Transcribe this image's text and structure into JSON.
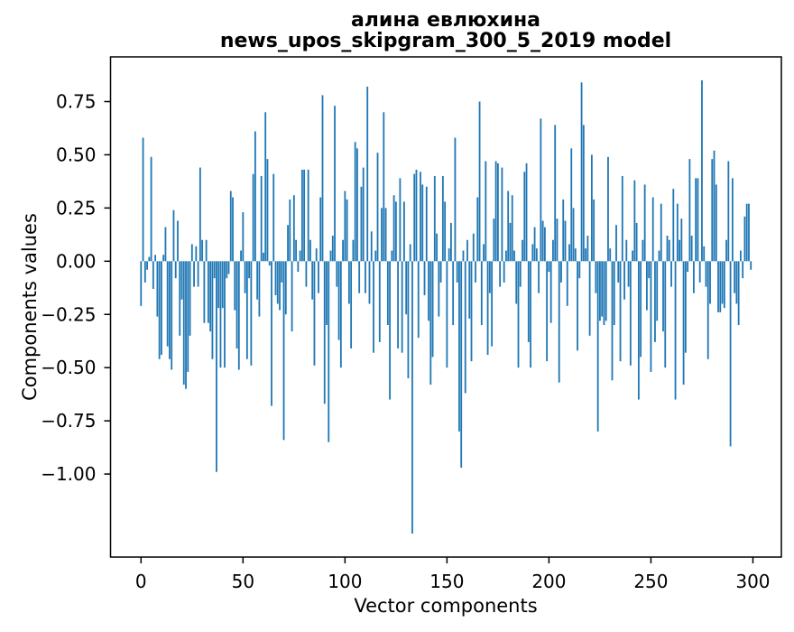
{
  "page": {
    "background": "#ffffff"
  },
  "chart_data": {
    "type": "bar",
    "title_line1": "алина евлюхина",
    "title_line2": "news_upos_skipgram_300_5_2019 model",
    "title": "алина евлюхина\nnews_upos_skipgram_300_5_2019 model",
    "xlabel": "Vector components",
    "ylabel": "Components values",
    "legend": null,
    "grid": false,
    "bar_color": "#1f77b4",
    "axis_color": "#000000",
    "n_components": 300,
    "x_ticks": [
      0,
      50,
      100,
      150,
      200,
      250,
      300
    ],
    "x_tick_labels": [
      "0",
      "50",
      "100",
      "150",
      "200",
      "250",
      "300"
    ],
    "y_ticks": [
      0.75,
      0.5,
      0.25,
      0.0,
      -0.25,
      -0.5,
      -0.75,
      -1.0
    ],
    "y_tick_labels": [
      "0.75",
      "0.50",
      "0.25",
      "0.00",
      "−0.25",
      "−0.50",
      "−0.75",
      "−1.00"
    ],
    "xlim": [
      -14.95,
      313.95
    ],
    "ylim": [
      -1.39,
      0.96
    ],
    "values": [
      -0.21,
      0.58,
      -0.1,
      -0.04,
      0.02,
      0.49,
      -0.13,
      0.03,
      -0.26,
      -0.46,
      -0.44,
      0.03,
      0.16,
      -0.4,
      -0.46,
      -0.51,
      0.24,
      -0.08,
      0.19,
      -0.35,
      -0.18,
      -0.58,
      -0.6,
      -0.52,
      -0.35,
      0.08,
      -0.12,
      0.07,
      -0.12,
      0.44,
      0.1,
      -0.29,
      0.1,
      -0.29,
      -0.33,
      -0.46,
      -0.08,
      -0.99,
      -0.22,
      -0.5,
      -0.22,
      -0.5,
      -0.08,
      -0.06,
      0.33,
      0.3,
      -0.23,
      -0.41,
      -0.51,
      0.05,
      0.23,
      -0.15,
      -0.46,
      -0.08,
      -0.49,
      0.41,
      0.61,
      -0.18,
      -0.26,
      0.4,
      0.04,
      0.7,
      0.48,
      -0.02,
      -0.68,
      0.41,
      -0.16,
      -0.2,
      -0.23,
      -0.1,
      -0.84,
      -0.25,
      0.17,
      0.29,
      -0.33,
      0.31,
      0.1,
      -0.05,
      0.05,
      0.43,
      0.43,
      -0.12,
      0.43,
      0.1,
      -0.18,
      -0.49,
      0.06,
      -0.15,
      0.3,
      0.78,
      -0.67,
      -0.3,
      -0.85,
      0.05,
      0.12,
      0.73,
      -0.12,
      -0.37,
      -0.5,
      0.1,
      0.33,
      0.29,
      -0.2,
      -0.41,
      0.1,
      0.56,
      0.53,
      -0.15,
      0.35,
      0.44,
      -0.15,
      0.82,
      -0.2,
      0.14,
      -0.43,
      0.05,
      0.51,
      -0.38,
      0.25,
      0.7,
      0.25,
      -0.3,
      -0.65,
      0.05,
      0.31,
      0.28,
      -0.41,
      0.39,
      -0.43,
      0.28,
      -0.25,
      -0.55,
      0.08,
      -1.28,
      0.41,
      0.43,
      -0.36,
      0.42,
      0.36,
      -0.16,
      0.35,
      -0.28,
      -0.58,
      -0.45,
      0.4,
      0.13,
      -0.26,
      -0.1,
      0.4,
      0.28,
      -0.5,
      0.06,
      0.18,
      -0.3,
      0.58,
      -0.1,
      -0.8,
      -0.97,
      0.05,
      -0.62,
      0.1,
      -0.27,
      -0.47,
      0.13,
      -0.1,
      0.3,
      0.75,
      -0.3,
      0.08,
      0.47,
      -0.44,
      -0.15,
      -0.4,
      0.2,
      0.47,
      0.46,
      -0.12,
      0.44,
      -0.1,
      0.05,
      0.33,
      0.18,
      0.31,
      0.05,
      -0.2,
      -0.5,
      -0.12,
      0.1,
      0.42,
      0.46,
      -0.38,
      -0.5,
      0.08,
      0.16,
      0.06,
      -0.15,
      0.67,
      0.19,
      0.16,
      -0.47,
      -0.05,
      -0.29,
      0.1,
      0.64,
      0.2,
      -0.57,
      -0.1,
      0.29,
      0.19,
      -0.21,
      0.08,
      0.53,
      0.25,
      0.06,
      -0.42,
      -0.08,
      0.84,
      0.64,
      0.06,
      0.12,
      -0.35,
      0.5,
      0.29,
      -0.15,
      -0.8,
      -0.28,
      -0.26,
      -0.3,
      -0.28,
      0.49,
      0.06,
      -0.56,
      -0.3,
      0.17,
      -0.1,
      -0.47,
      0.4,
      -0.18,
      0.1,
      -0.12,
      -0.49,
      0.05,
      0.38,
      0.18,
      -0.65,
      -0.45,
      0.1,
      0.36,
      -0.23,
      -0.08,
      -0.52,
      0.3,
      -0.38,
      -0.28,
      0.05,
      0.27,
      -0.33,
      -0.5,
      0.12,
      0.1,
      -0.12,
      0.34,
      -0.65,
      0.27,
      0.1,
      0.2,
      -0.58,
      -0.43,
      -0.05,
      0.48,
      0.12,
      -0.15,
      0.39,
      0.39,
      -0.1,
      0.85,
      0.07,
      -0.12,
      -0.46,
      -0.2,
      0.48,
      0.52,
      0.36,
      -0.24,
      -0.24,
      -0.2,
      -0.22,
      0.1,
      0.47,
      -0.87,
      0.39,
      -0.15,
      -0.2,
      -0.3,
      0.05,
      -0.08,
      0.21,
      0.27,
      0.27,
      -0.04
    ]
  }
}
